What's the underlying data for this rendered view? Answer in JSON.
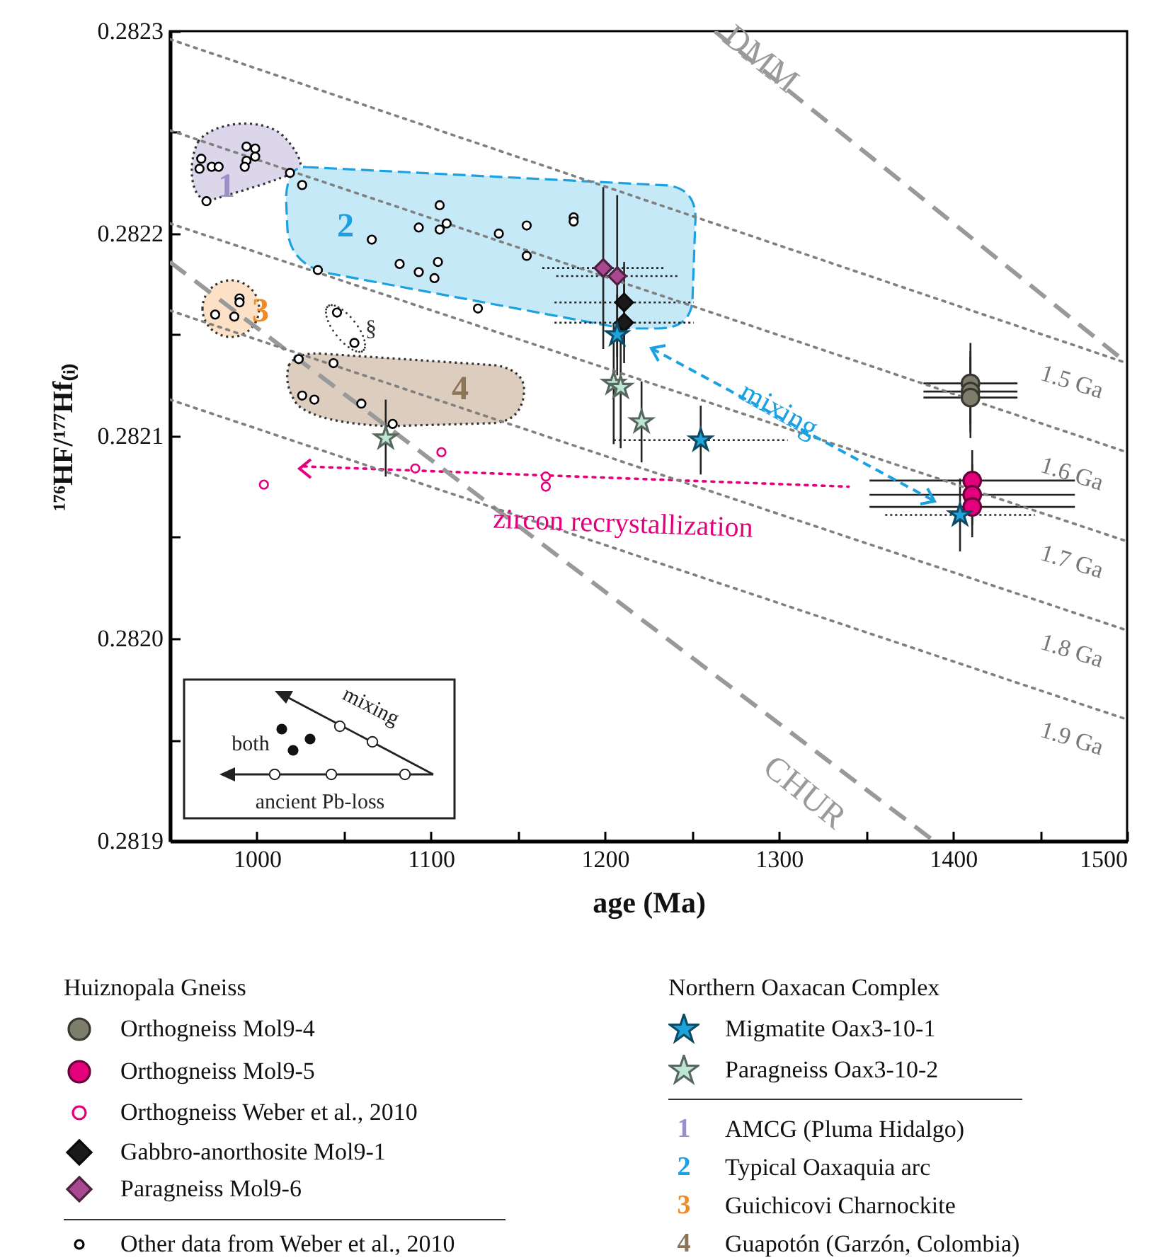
{
  "chart_data": {
    "type": "scatter",
    "xlabel": "age (Ma)",
    "ylabel": "¹⁷⁶HF/¹⁷⁷Hf₍ᵢ₎",
    "legend": "bottom",
    "legend_title": "Huiznopala Gneiss",
    "grid": false,
    "xlim": [
      950,
      1500
    ],
    "xticks": [
      1000,
      {
        "value": 1050,
        "label": null
      },
      1100,
      {
        "value": 1150,
        "label": null
      },
      1200,
      {
        "value": 1250,
        "label": null
      },
      1300,
      {
        "value": 1350,
        "label": null
      },
      1400,
      {
        "value": 1450,
        "label": null
      },
      1500
    ],
    "ylim": [
      0.2819,
      0.2823
    ],
    "yticks": [
      0.2819,
      {
        "value": 0.28195,
        "label": null
      },
      {
        "value": 0.282,
        "label": "0.2820"
      },
      {
        "value": 0.28205,
        "label": null
      },
      0.2821,
      {
        "value": 0.28215,
        "label": null
      },
      0.2822,
      {
        "value": 0.28225,
        "label": null
      },
      0.2823
    ],
    "series": [
      {
        "name": "Orthogneiss Mol9-4",
        "color": "#7d7d6b",
        "marker": "circle",
        "x": [
          1410,
          1410,
          1410
        ],
        "values": [
          0.282126,
          0.282122,
          0.282119
        ],
        "errors": [
          2e-05,
          2e-05,
          2e-05
        ],
        "xerrors": [
          27,
          27,
          27
        ]
      },
      {
        "name": "Orthogneiss Mol9-5",
        "color": "#e4007c",
        "marker": "circle",
        "x": [
          1411,
          1411,
          1411
        ],
        "values": [
          0.282078,
          0.282071,
          0.282065
        ],
        "errors": [
          1.5e-05,
          1.5e-05,
          1.5e-05
        ],
        "xerrors": [
          59,
          59,
          59
        ]
      },
      {
        "name": "Orthogneiss Weber et al., 2010",
        "color": "#e4007c",
        "marker": "circle",
        "x": [
          1004,
          1091,
          1106,
          1166,
          1166
        ],
        "values": [
          0.282076,
          0.282084,
          0.282092,
          0.28208,
          0.282075
        ]
      },
      {
        "name": "Gabbro-anorthosite Mol9-1",
        "color": "#1a1a1a",
        "marker": "diamond",
        "x": [
          1211,
          1211
        ],
        "values": [
          0.282166,
          0.282156
        ],
        "errors": [
          2e-05,
          2e-05
        ],
        "xerrors": [
          40,
          40
        ]
      },
      {
        "name": "Paragneiss Mol9-6",
        "color": "#a8488f",
        "marker": "diamond",
        "x": [
          1199,
          1207
        ],
        "values": [
          0.282183,
          0.282179
        ],
        "errors": [
          4e-05,
          4e-05
        ],
        "xerrors": [
          35,
          35
        ]
      },
      {
        "name": "Other data from Weber et al., 2010",
        "color": "#000000",
        "marker": "circle",
        "x": [
          968,
          967,
          974,
          978,
          994,
          999,
          999,
          994,
          993,
          971,
          1019,
          1026,
          1066,
          1105,
          1093,
          1105,
          1109,
          1139,
          1155,
          1182,
          1182,
          1082,
          1093,
          1102,
          1104,
          1155,
          1035,
          1127,
          990,
          990,
          976,
          987,
          1046,
          1056,
          1024,
          1044,
          1026,
          1033,
          1060,
          1078
        ],
        "values": [
          0.282237,
          0.282232,
          0.282233,
          0.282233,
          0.282243,
          0.282242,
          0.282238,
          0.282236,
          0.282233,
          0.282216,
          0.28223,
          0.282224,
          0.282197,
          0.282214,
          0.282203,
          0.282202,
          0.282205,
          0.2822,
          0.282204,
          0.282208,
          0.282206,
          0.282185,
          0.282181,
          0.282178,
          0.282186,
          0.282189,
          0.282182,
          0.282163,
          0.282168,
          0.282166,
          0.28216,
          0.282159,
          0.282161,
          0.282146,
          0.282138,
          0.282136,
          0.28212,
          0.282118,
          0.282116,
          0.282106
        ]
      },
      {
        "name": "Migmatite Oax3-10-1",
        "color": "#1ea4dd",
        "marker": "star",
        "x": [
          1207,
          1255,
          1404
        ],
        "values": [
          0.28215,
          0.282098,
          0.282061
        ],
        "errors": [
          2e-05,
          1.7e-05,
          1.8e-05
        ],
        "xerrors": [
          null,
          50,
          43
        ]
      },
      {
        "name": "Paragneiss Oax3-10-2",
        "color": "#bfe6d2",
        "marker": "star",
        "x": [
          1205,
          1209,
          1221,
          1074
        ],
        "values": [
          0.282126,
          0.282124,
          0.282107,
          0.282099
        ],
        "errors": [
          3e-05,
          3e-05,
          2e-05,
          1.9e-05
        ]
      },
      {
        "type": "line",
        "color": "#e6007e",
        "line_style": "dotted",
        "x": [
          1340,
          1027
        ],
        "values": [
          0.282075,
          0.282085
        ]
      },
      {
        "type": "line",
        "color": "#999999",
        "line_style": "dashed",
        "x": [
          1263,
          1500
        ],
        "values": [
          0.2823,
          0.282136
        ]
      },
      {
        "type": "line",
        "color": "#999999",
        "line_style": "dashed",
        "x": [
          950,
          1389
        ],
        "values": [
          0.282186,
          0.2819
        ]
      },
      {
        "type": "line",
        "color": "#808080",
        "line_style": "dotted",
        "x": [
          950,
          1500
        ],
        "values": [
          0.282296,
          0.282136
        ]
      },
      {
        "type": "line",
        "color": "#808080",
        "line_style": "dotted",
        "x": [
          950,
          1500
        ],
        "values": [
          0.282251,
          0.282092
        ]
      },
      {
        "type": "line",
        "color": "#808080",
        "line_style": "dotted",
        "x": [
          950,
          1500
        ],
        "values": [
          0.282205,
          0.282048
        ]
      },
      {
        "type": "line",
        "color": "#808080",
        "line_style": "dotted",
        "x": [
          950,
          1500
        ],
        "values": [
          0.282162,
          0.282004
        ]
      },
      {
        "type": "line",
        "color": "#808080",
        "line_style": "dotted",
        "x": [
          950,
          1500
        ],
        "values": [
          0.282118,
          0.28196
        ]
      }
    ],
    "annotations": [
      "DMM",
      "CHUR",
      "1.5 Ga",
      "1.6 Ga",
      "1.7 Ga",
      "1.8 Ga",
      "1.9 Ga",
      "mixing",
      "zircon recrystallization",
      "1",
      "2",
      "3",
      "4",
      "§",
      "mixing",
      "both",
      "ancient Pb-loss",
      "Northern Oaxacan Complex",
      "AMCG (Pluma Hidalgo)",
      "Typical Oaxaquia arc",
      "Guichicovi Charnockite",
      "Guapotón (Garzón, Colombia)"
    ]
  }
}
